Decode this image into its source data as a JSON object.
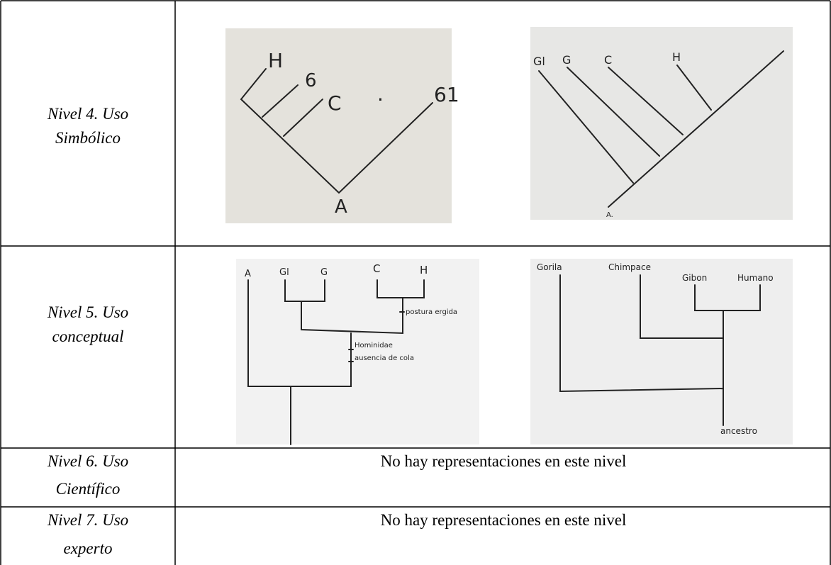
{
  "table": {
    "rows": [
      {
        "level": [
          "Nivel 4. Uso",
          "Simbólico"
        ],
        "drawings": [
          {
            "labels": [
              "H",
              "6",
              "C",
              "·",
              "61",
              "A"
            ]
          },
          {
            "labels": [
              "Gl",
              "G",
              "C",
              "H",
              "A."
            ]
          }
        ]
      },
      {
        "level": [
          "Nivel 5. Uso",
          "conceptual"
        ],
        "drawings": [
          {
            "labels": [
              "A",
              "Gl",
              "G",
              "C",
              "H",
              "postura ergida",
              "Hominidae",
              "ausencia de cola"
            ]
          },
          {
            "labels": [
              "Gorila",
              "Chimpace",
              "Gibon",
              "Humano",
              "ancestro"
            ]
          }
        ]
      },
      {
        "level": [
          "Nivel 6. Uso",
          "Científico"
        ],
        "note": "No hay representaciones en este nivel"
      },
      {
        "level": [
          "Nivel 7. Uso",
          "experto"
        ],
        "note": "No hay representaciones en este nivel"
      }
    ]
  }
}
